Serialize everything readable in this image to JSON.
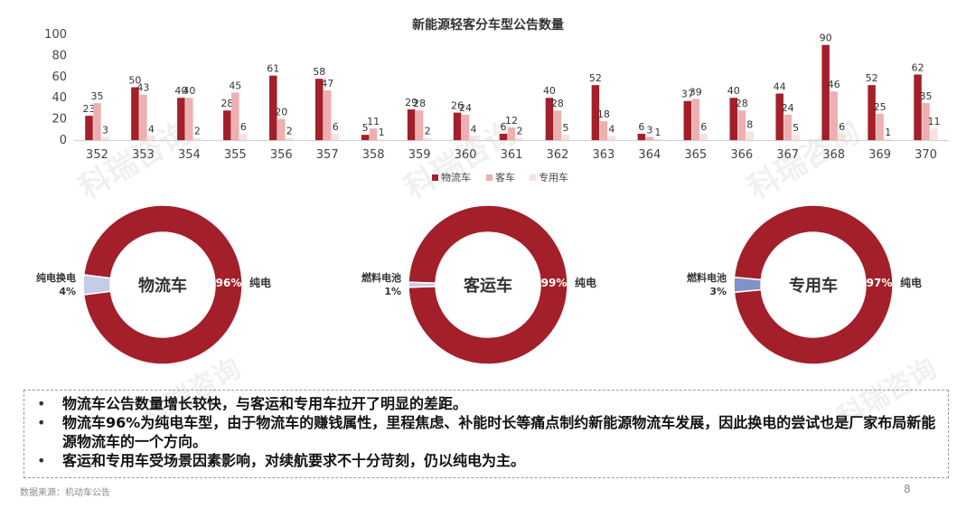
{
  "chart_data": [
    {
      "type": "bar",
      "title": "新能源轻客分车型公告数量",
      "categories": [
        "352",
        "353",
        "354",
        "355",
        "356",
        "357",
        "358",
        "359",
        "360",
        "361",
        "362",
        "363",
        "364",
        "365",
        "366",
        "367",
        "368",
        "369",
        "370"
      ],
      "series": [
        {
          "name": "物流车",
          "color": "#A31F2A",
          "values": [
            23,
            50,
            40,
            28,
            61,
            58,
            5,
            29,
            26,
            6,
            40,
            52,
            6,
            37,
            40,
            44,
            90,
            52,
            62
          ]
        },
        {
          "name": "客车",
          "color": "#EDB0B0",
          "values": [
            35,
            43,
            40,
            45,
            20,
            47,
            11,
            28,
            24,
            12,
            28,
            18,
            3,
            39,
            28,
            24,
            46,
            25,
            35
          ]
        },
        {
          "name": "专用车",
          "color": "#F7E1E1",
          "values": [
            3,
            4,
            2,
            6,
            2,
            6,
            1,
            2,
            4,
            2,
            5,
            4,
            1,
            6,
            8,
            5,
            6,
            1,
            11
          ]
        }
      ],
      "ylim": [
        0,
        100
      ],
      "yticks": [
        0,
        20,
        40,
        60,
        80,
        100
      ],
      "legend": "bottom"
    },
    {
      "type": "pie",
      "center_label": "物流车",
      "slices": [
        {
          "label": "纯电",
          "value": 96,
          "value_label": "96%",
          "color": "#A31F2A"
        },
        {
          "label": "纯电换电",
          "value": 4,
          "value_label": "4%",
          "color": "#C4CCE6"
        }
      ]
    },
    {
      "type": "pie",
      "center_label": "客运车",
      "slices": [
        {
          "label": "纯电",
          "value": 99,
          "value_label": "99%",
          "color": "#A31F2A"
        },
        {
          "label": "燃料电池",
          "value": 1,
          "value_label": "1%",
          "color": "#C4CCE6"
        }
      ]
    },
    {
      "type": "pie",
      "center_label": "专用车",
      "slices": [
        {
          "label": "纯电",
          "value": 97,
          "value_label": "97%",
          "color": "#A31F2A"
        },
        {
          "label": "燃料电池",
          "value": 3,
          "value_label": "3%",
          "color": "#7F93C9"
        }
      ]
    }
  ],
  "bullets": [
    "物流车公告数量增长较快，与客运和专用车拉开了明显的差距。",
    "物流车96%为纯电车型，由于物流车的赚钱属性，里程焦虑、补能时长等痛点制约新能源物流车发展，因此换电的尝试也是厂家布局新能源物流车的一个方向。",
    "客运和专用车受场景因素影响，对续航要求不十分苛刻，仍以纯电为主。"
  ],
  "source": "数据来源：机动车公告",
  "page_number": "8",
  "watermark": "科瑞咨询",
  "colors": {
    "axis": "#d0d0d0",
    "text": "#333333"
  }
}
